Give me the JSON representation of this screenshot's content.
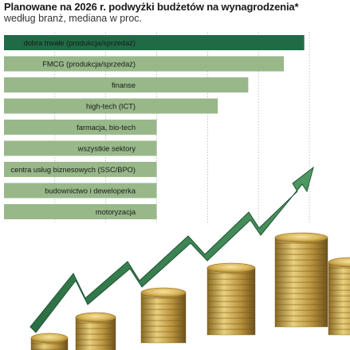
{
  "chart_data": {
    "type": "bar",
    "orientation": "horizontal",
    "title": "Planowane na 2026 r. podwyżki budżetów na wynagrodzenia*",
    "subtitle": "według branż, mediana w proc.",
    "categories": [
      "dobra trwałe (produkcja/sprzedaż)",
      "FMCG (produkcja/sprzedaż)",
      "finanse",
      "high-tech (ICT)",
      "farmacja, bio-tech",
      "wszystkie sektory",
      "centra usług biznesowych (SSC/BPO)",
      "budownictwo i deweloperka",
      "motoryzacja"
    ],
    "values": [
      5.9,
      5.5,
      4.8,
      4.2,
      3.0,
      3.0,
      3.0,
      3.0,
      3.0
    ],
    "xlim": [
      0,
      6
    ],
    "grid": true,
    "legend": "none",
    "colors": {
      "highlight": "#1f6b45",
      "bar": "#98b88a",
      "gridline": "#9a9a9a",
      "arrow": "#2f7a4a",
      "coin": "#c9a54a"
    }
  }
}
